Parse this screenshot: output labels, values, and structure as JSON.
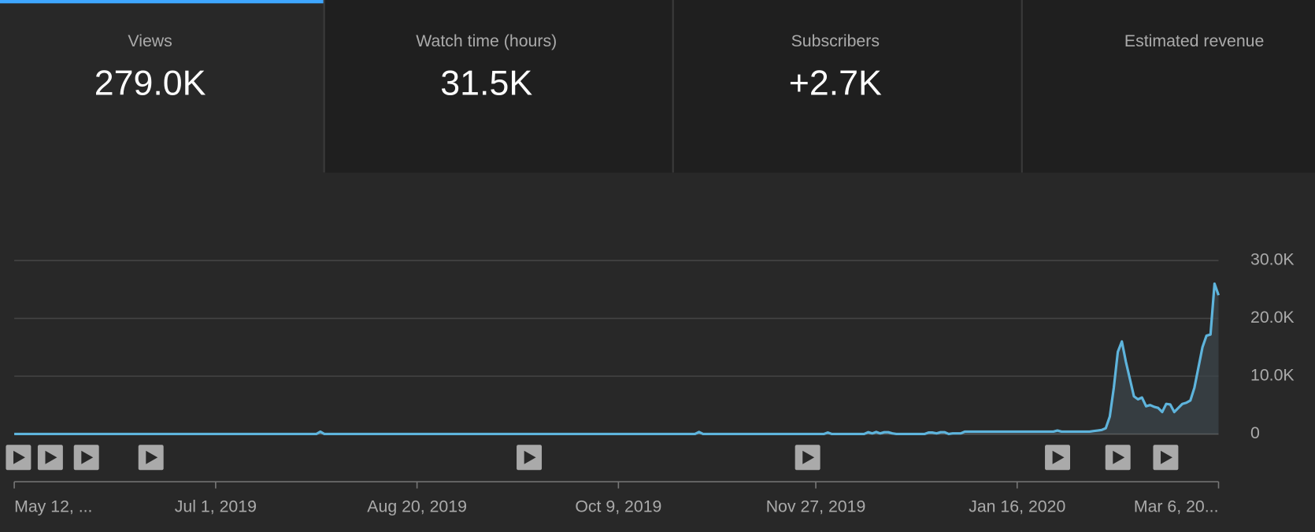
{
  "tabs": [
    {
      "label": "Views",
      "value": "279.0K"
    },
    {
      "label": "Watch time (hours)",
      "value": "31.5K"
    },
    {
      "label": "Subscribers",
      "value": "+2.7K"
    },
    {
      "label": "Estimated revenue"
    }
  ],
  "chart_data": {
    "type": "line",
    "color": "#5eb4dc",
    "x": [
      "2019-05-12",
      "2019-07-26",
      "2019-07-27",
      "2019-07-28",
      "2019-10-28",
      "2019-10-29",
      "2019-10-30",
      "2019-11-29",
      "2019-11-30",
      "2019-12-01",
      "2019-12-09",
      "2019-12-10",
      "2019-12-11",
      "2019-12-12",
      "2019-12-13",
      "2019-12-14",
      "2019-12-15",
      "2019-12-16",
      "2019-12-17",
      "2019-12-24",
      "2019-12-25",
      "2019-12-26",
      "2019-12-27",
      "2019-12-28",
      "2019-12-29",
      "2019-12-30",
      "2019-12-31",
      "2020-01-02",
      "2020-01-03",
      "2020-01-25",
      "2020-01-26",
      "2020-01-27",
      "2020-02-01",
      "2020-02-02",
      "2020-02-03",
      "2020-02-04",
      "2020-02-05",
      "2020-02-06",
      "2020-02-07",
      "2020-02-08",
      "2020-02-09",
      "2020-02-10",
      "2020-02-11",
      "2020-02-12",
      "2020-02-13",
      "2020-02-14",
      "2020-02-15",
      "2020-02-16",
      "2020-02-17",
      "2020-02-18",
      "2020-02-19",
      "2020-02-20",
      "2020-02-21",
      "2020-02-22",
      "2020-02-23",
      "2020-02-24",
      "2020-02-25",
      "2020-02-26",
      "2020-02-27",
      "2020-02-28",
      "2020-02-29",
      "2020-03-01",
      "2020-03-02",
      "2020-03-03",
      "2020-03-04",
      "2020-03-05",
      "2020-03-06"
    ],
    "values": [
      0,
      0,
      400,
      0,
      0,
      350,
      0,
      0,
      250,
      0,
      0,
      300,
      100,
      350,
      100,
      300,
      300,
      100,
      0,
      0,
      250,
      250,
      100,
      300,
      300,
      0,
      100,
      100,
      400,
      400,
      600,
      400,
      400,
      400,
      400,
      500,
      600,
      700,
      1000,
      3000,
      8000,
      14200,
      16000,
      12500,
      9500,
      6500,
      6000,
      6300,
      4800,
      5000,
      4700,
      4500,
      3800,
      5200,
      5100,
      3800,
      4500,
      5200,
      5400,
      5800,
      8000,
      11500,
      15000,
      17000,
      17200,
      26000,
      24000
    ],
    "xlim": [
      "2019-05-12",
      "2020-03-06"
    ],
    "xticks": [
      {
        "value": "2019-05-12",
        "label": "May 12, ..."
      },
      {
        "value": "2019-07-01",
        "label": "Jul 1, 2019"
      },
      {
        "value": "2019-08-20",
        "label": "Aug 20, 2019"
      },
      {
        "value": "2019-10-09",
        "label": "Oct 9, 2019"
      },
      {
        "value": "2019-11-27",
        "label": "Nov 27, 2019"
      },
      {
        "value": "2020-01-16",
        "label": "Jan 16, 2020"
      },
      {
        "value": "2020-03-06",
        "label": "Mar 6, 20..."
      }
    ],
    "ylim": [
      0,
      30000
    ],
    "yticks": [
      0,
      {
        "value": 10000,
        "label": "10.0K"
      },
      {
        "value": 20000,
        "label": "20.0K"
      },
      {
        "value": 30000,
        "label": "30.0K"
      }
    ],
    "grid": true
  }
}
